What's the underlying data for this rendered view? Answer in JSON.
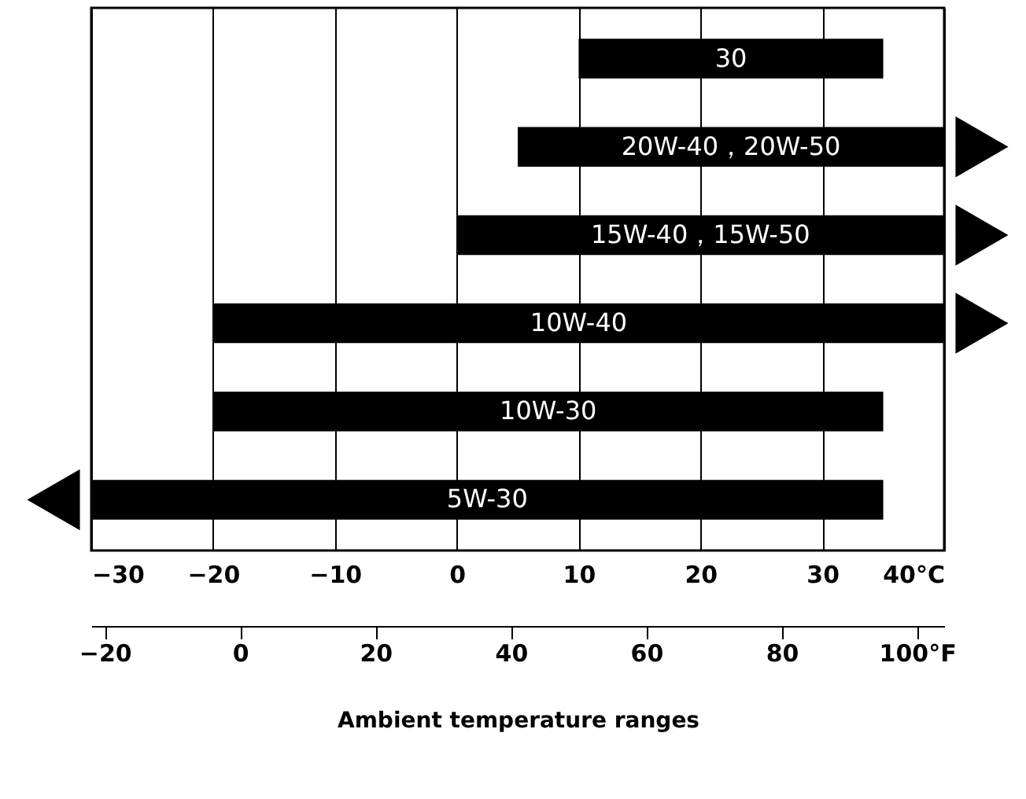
{
  "chart_data": {
    "type": "bar",
    "orientation": "horizontal",
    "xlabel": "Ambient temperature ranges",
    "categories": [
      "30",
      "20W-40，20W-50",
      "15W-40，15W-50",
      "10W-40",
      "10W-30",
      "5W-30"
    ],
    "values": [
      25,
      35,
      40,
      60,
      55,
      65
    ],
    "base": [
      10,
      5,
      0,
      -20,
      -20,
      -30
    ],
    "color": "#000000",
    "xlim": [
      -30,
      40
    ],
    "xticks": [
      -30,
      -20,
      -10,
      0,
      10,
      20,
      30,
      {
        "value": 40,
        "label": "40°C"
      }
    ],
    "x2lim": [
      -22,
      104
    ],
    "x2ticks": [
      -20,
      0,
      20,
      40,
      60,
      80,
      {
        "value": 100,
        "label": "100°F"
      }
    ],
    "grid": "x",
    "tick_labels": "x"
  }
}
